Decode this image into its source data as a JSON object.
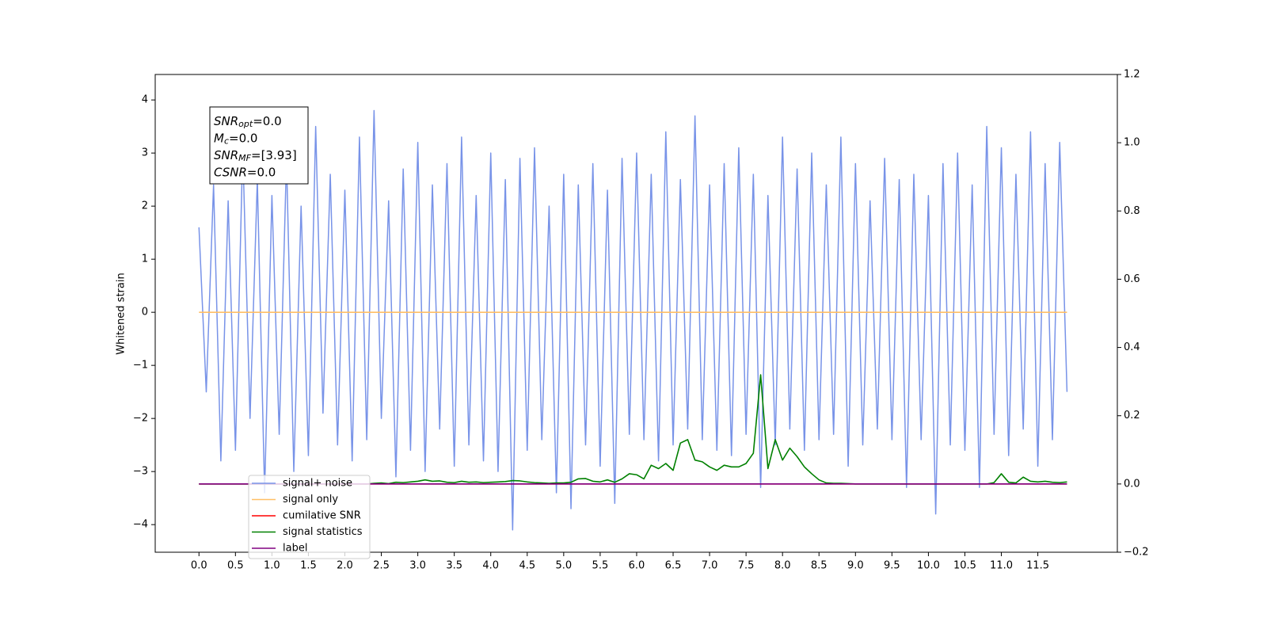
{
  "chart_data": {
    "type": "line",
    "y_label": "Whitened strain",
    "annotation": [
      {
        "text": "SNR",
        "sub": "opt",
        "value": "=0.0"
      },
      {
        "text": "M",
        "sub": "c",
        "value": "=0.0"
      },
      {
        "text": "SNR",
        "sub": "MF",
        "value": "=[3.93]"
      },
      {
        "text": "CSNR",
        "value": "=0.0"
      }
    ],
    "x": [
      0,
      0.1,
      0.2,
      0.3,
      0.4,
      0.5,
      0.6,
      0.7,
      0.8,
      0.9,
      1,
      1.1,
      1.2,
      1.3,
      1.4,
      1.5,
      1.6,
      1.7,
      1.8,
      1.9,
      2,
      2.1,
      2.2,
      2.3,
      2.4,
      2.5,
      2.6,
      2.7,
      2.8,
      2.9,
      3,
      3.1,
      3.2,
      3.3,
      3.4,
      3.5,
      3.6,
      3.7,
      3.8,
      3.9,
      4,
      4.1,
      4.2,
      4.3,
      4.4,
      4.5,
      4.6,
      4.7,
      4.8,
      4.9,
      5,
      5.1,
      5.2,
      5.3,
      5.4,
      5.5,
      5.6,
      5.7,
      5.8,
      5.9,
      6,
      6.1,
      6.2,
      6.3,
      6.4,
      6.5,
      6.6,
      6.7,
      6.8,
      6.9,
      7,
      7.1,
      7.2,
      7.3,
      7.4,
      7.5,
      7.6,
      7.7,
      7.8,
      7.9,
      8,
      8.1,
      8.2,
      8.3,
      8.4,
      8.5,
      8.6,
      8.7,
      8.8,
      8.9,
      9,
      9.1,
      9.2,
      9.3,
      9.4,
      9.5,
      9.6,
      9.7,
      9.8,
      9.9,
      10,
      10.1,
      10.2,
      10.3,
      10.4,
      10.5,
      10.6,
      10.7,
      10.8,
      10.9,
      11,
      11.1,
      11.2,
      11.3,
      11.4,
      11.5,
      11.6,
      11.7,
      11.8,
      11.9
    ],
    "series": [
      {
        "name": "signal+ noise",
        "color": "#7893e8",
        "values": [
          1.6,
          -1.5,
          2.4,
          -2.8,
          2.1,
          -2.6,
          3.1,
          -2.0,
          2.5,
          -3.4,
          2.2,
          -2.3,
          2.9,
          -3.0,
          2.0,
          -2.7,
          3.5,
          -1.9,
          2.6,
          -2.5,
          2.3,
          -2.8,
          3.3,
          -2.4,
          3.8,
          -2.0,
          2.1,
          -3.1,
          2.7,
          -2.6,
          3.2,
          -3.0,
          2.4,
          -2.2,
          2.8,
          -2.9,
          3.3,
          -2.5,
          2.2,
          -2.8,
          3.0,
          -3.0,
          2.5,
          -4.1,
          2.9,
          -2.6,
          3.1,
          -2.4,
          2.0,
          -3.4,
          2.6,
          -3.7,
          2.4,
          -2.5,
          2.8,
          -2.9,
          2.3,
          -3.6,
          2.9,
          -2.3,
          3.0,
          -2.4,
          2.6,
          -2.8,
          3.4,
          -2.5,
          2.5,
          -2.2,
          3.7,
          -2.4,
          2.4,
          -2.6,
          2.8,
          -2.7,
          3.1,
          -2.3,
          2.6,
          -3.3,
          2.2,
          -2.5,
          3.3,
          -2.2,
          2.7,
          -2.6,
          3.0,
          -2.4,
          2.4,
          -2.3,
          3.3,
          -2.9,
          2.8,
          -2.5,
          2.1,
          -2.2,
          2.9,
          -2.4,
          2.5,
          -3.3,
          2.6,
          -2.4,
          2.2,
          -3.8,
          2.8,
          -2.5,
          3.0,
          -2.6,
          2.4,
          -3.3,
          3.5,
          -2.3,
          3.1,
          -2.7,
          2.6,
          -2.2,
          3.4,
          -2.9,
          2.8,
          -2.4,
          3.2,
          -1.5
        ]
      },
      {
        "name": "signal only",
        "color": "#ffbf66",
        "values": [
          0,
          0,
          0,
          0,
          0,
          0,
          0,
          0,
          0,
          0,
          0,
          0,
          0,
          0,
          0,
          0,
          0,
          0,
          0,
          0,
          0,
          0,
          0,
          0,
          0,
          0,
          0,
          0,
          0,
          0,
          0,
          0,
          0,
          0,
          0,
          0,
          0,
          0,
          0,
          0,
          0,
          0,
          0,
          0,
          0,
          0,
          0,
          0,
          0,
          0,
          0,
          0,
          0,
          0,
          0,
          0,
          0,
          0,
          0,
          0,
          0,
          0,
          0,
          0,
          0,
          0,
          0,
          0,
          0,
          0,
          0,
          0,
          0,
          0,
          0,
          0,
          0,
          0,
          0,
          0,
          0,
          0,
          0,
          0,
          0,
          0,
          0,
          0,
          0,
          0,
          0,
          0,
          0,
          0,
          0,
          0,
          0,
          0,
          0,
          0,
          0,
          0,
          0,
          0,
          0,
          0,
          0,
          0,
          0,
          0,
          0,
          0,
          0,
          0,
          0,
          0,
          0,
          0,
          0,
          0
        ]
      },
      {
        "name": "cumilative SNR",
        "color": "#ff0000",
        "axis": "y2",
        "values": [
          0,
          0,
          0,
          0,
          0,
          0,
          0,
          0,
          0,
          0,
          0,
          0,
          0,
          0,
          0,
          0,
          0,
          0,
          0,
          0,
          0,
          0,
          0,
          0,
          0,
          0,
          0,
          0,
          0,
          0,
          0,
          0,
          0,
          0,
          0,
          0,
          0,
          0,
          0,
          0,
          0,
          0,
          0,
          0,
          0,
          0,
          0,
          0,
          0,
          0,
          0,
          0,
          0,
          0,
          0,
          0,
          0,
          0,
          0,
          0,
          0,
          0,
          0,
          0,
          0,
          0,
          0,
          0,
          0,
          0,
          0,
          0,
          0,
          0,
          0,
          0,
          0,
          0,
          0,
          0,
          0,
          0,
          0,
          0,
          0,
          0,
          0,
          0,
          0,
          0,
          0,
          0,
          0,
          0,
          0,
          0,
          0,
          0,
          0,
          0,
          0,
          0,
          0,
          0,
          0,
          0,
          0,
          0,
          0,
          0,
          0,
          0,
          0,
          0,
          0,
          0,
          0,
          0,
          0,
          0
        ]
      },
      {
        "name": "signal statistics",
        "color": "#008000",
        "axis": "y2",
        "values": [
          0,
          0,
          0,
          0,
          0,
          0,
          0,
          0,
          0,
          0,
          0,
          0,
          0,
          0,
          0,
          0,
          0,
          0,
          0,
          0,
          0,
          0,
          0,
          0,
          0.002,
          0.003,
          0.001,
          0.005,
          0.004,
          0.006,
          0.008,
          0.012,
          0.008,
          0.009,
          0.005,
          0.004,
          0.008,
          0.005,
          0.006,
          0.004,
          0.005,
          0.006,
          0.007,
          0.01,
          0.009,
          0.006,
          0.004,
          0.003,
          0.002,
          0.003,
          0.003,
          0.005,
          0.015,
          0.016,
          0.008,
          0.006,
          0.012,
          0.005,
          0.015,
          0.03,
          0.027,
          0.015,
          0.055,
          0.045,
          0.06,
          0.04,
          0.12,
          0.13,
          0.07,
          0.065,
          0.05,
          0.04,
          0.055,
          0.05,
          0.05,
          0.06,
          0.09,
          0.32,
          0.045,
          0.13,
          0.07,
          0.105,
          0.08,
          0.05,
          0.03,
          0.012,
          0.003,
          0.002,
          0.002,
          0.001,
          0,
          0,
          0,
          0,
          0,
          0,
          0,
          0,
          0,
          0,
          0,
          0,
          0,
          0,
          0,
          0,
          0,
          0,
          0,
          0.004,
          0.03,
          0.005,
          0.003,
          0.02,
          0.008,
          0.006,
          0.008,
          0.005,
          0.004,
          0.006
        ]
      },
      {
        "name": "label",
        "color": "#800080",
        "axis": "y2",
        "values": [
          0,
          0,
          0,
          0,
          0,
          0,
          0,
          0,
          0,
          0,
          0,
          0,
          0,
          0,
          0,
          0,
          0,
          0,
          0,
          0,
          0,
          0,
          0,
          0,
          0,
          0,
          0,
          0,
          0,
          0,
          0,
          0,
          0,
          0,
          0,
          0,
          0,
          0,
          0,
          0,
          0,
          0,
          0,
          0,
          0,
          0,
          0,
          0,
          0,
          0,
          0,
          0,
          0,
          0,
          0,
          0,
          0,
          0,
          0,
          0,
          0,
          0,
          0,
          0,
          0,
          0,
          0,
          0,
          0,
          0,
          0,
          0,
          0,
          0,
          0,
          0,
          0,
          0,
          0,
          0,
          0,
          0,
          0,
          0,
          0,
          0,
          0,
          0,
          0,
          0,
          0,
          0,
          0,
          0,
          0,
          0,
          0,
          0,
          0,
          0,
          0,
          0,
          0,
          0,
          0,
          0,
          0,
          0,
          0,
          0,
          0,
          0,
          0,
          0,
          0,
          0,
          0,
          0,
          0,
          0
        ]
      }
    ],
    "xlim": [
      -0.6,
      12.59
    ],
    "xticks": [
      {
        "value": 0,
        "label": "0.0"
      },
      0.5,
      {
        "value": 1,
        "label": "1.0"
      },
      1.5,
      {
        "value": 2,
        "label": "2.0"
      },
      2.5,
      {
        "value": 3,
        "label": "3.0"
      },
      3.5,
      {
        "value": 4,
        "label": "4.0"
      },
      4.5,
      {
        "value": 5,
        "label": "5.0"
      },
      5.5,
      {
        "value": 6,
        "label": "6.0"
      },
      6.5,
      {
        "value": 7,
        "label": "7.0"
      },
      7.5,
      {
        "value": 8,
        "label": "8.0"
      },
      8.5,
      {
        "value": 9,
        "label": "9.0"
      },
      9.5,
      {
        "value": 10,
        "label": "10.0"
      },
      10.5,
      {
        "value": 11,
        "label": "11.0"
      },
      11.5
    ],
    "ylim": [
      -4.52,
      4.48
    ],
    "yticks": [
      {
        "value": -4,
        "label": "−4"
      },
      {
        "value": -3,
        "label": "−3"
      },
      {
        "value": -2,
        "label": "−2"
      },
      {
        "value": -1,
        "label": "−1"
      },
      0,
      1,
      2,
      3,
      4
    ],
    "y2lim": [
      -0.2,
      1.2
    ],
    "y2ticks": [
      {
        "value": -0.2,
        "label": "−0.2"
      },
      {
        "value": 0,
        "label": "0.0"
      },
      0.2,
      0.4,
      0.6,
      0.8,
      {
        "value": 1,
        "label": "1.0"
      },
      1.2
    ],
    "legend": "lower left"
  }
}
